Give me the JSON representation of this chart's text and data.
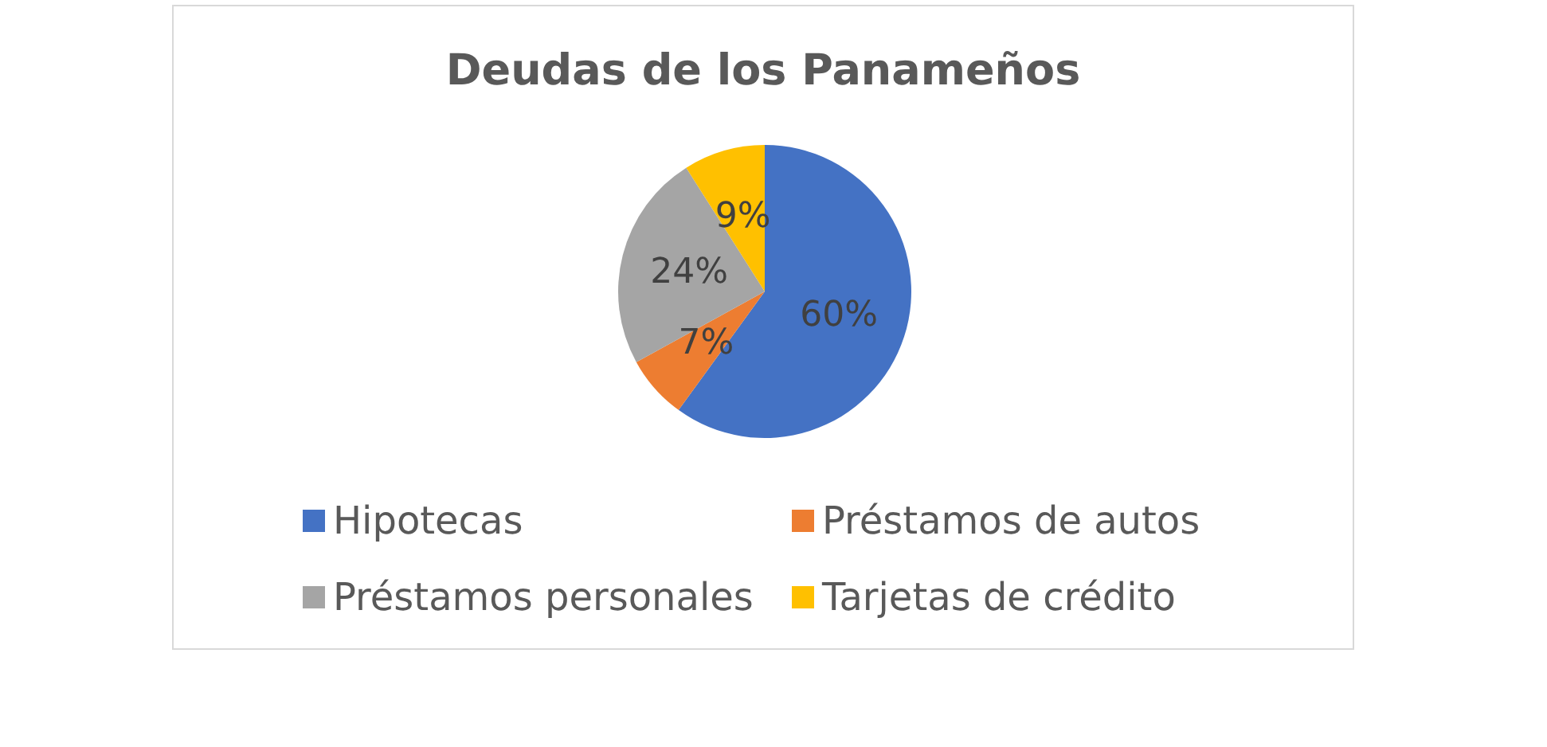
{
  "chart_data": {
    "type": "pie",
    "title": "Deudas de los Panameños",
    "categories": [
      "Hipotecas",
      "Préstamos de autos",
      "Préstamos personales",
      "Tarjetas de crédito"
    ],
    "values": [
      60,
      7,
      24,
      9
    ],
    "colors": [
      "#4472c4",
      "#ed7d31",
      "#a5a5a5",
      "#ffc000"
    ],
    "value_labels": [
      "60%",
      "7%",
      "24%",
      "9%"
    ],
    "legend": "bottom"
  }
}
